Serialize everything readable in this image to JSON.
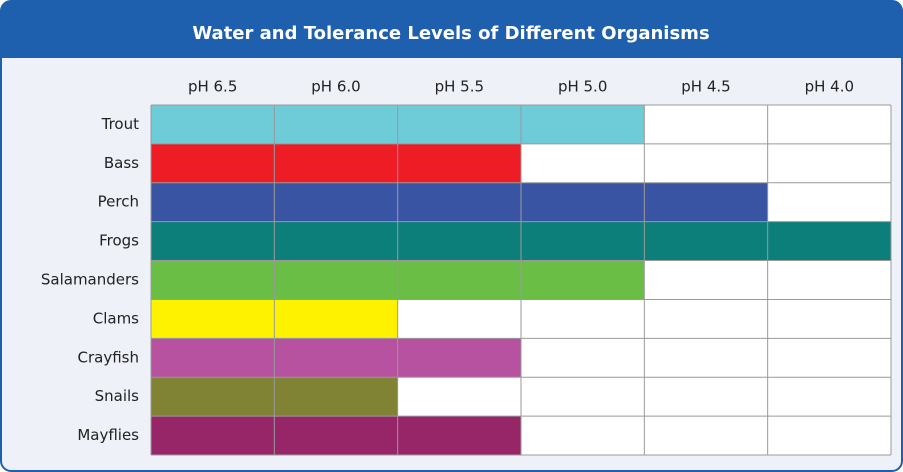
{
  "header": {
    "title": "Water and Tolerance Levels of Different Organisms"
  },
  "table": {
    "columns": [
      "pH 6.5",
      "pH 6.0",
      "pH 5.5",
      "pH 5.0",
      "pH 4.5",
      "pH 4.0"
    ],
    "rows": [
      {
        "label": "Trout",
        "color": "#6ecbd8",
        "cells": [
          true,
          true,
          true,
          true,
          false,
          false
        ]
      },
      {
        "label": "Bass",
        "color": "#ee1c25",
        "cells": [
          true,
          true,
          true,
          false,
          false,
          false
        ]
      },
      {
        "label": "Perch",
        "color": "#3a54a4",
        "cells": [
          true,
          true,
          true,
          true,
          true,
          false
        ]
      },
      {
        "label": "Frogs",
        "color": "#0d7f7a",
        "cells": [
          true,
          true,
          true,
          true,
          true,
          true
        ]
      },
      {
        "label": "Salamanders",
        "color": "#6abd45",
        "cells": [
          true,
          true,
          true,
          true,
          false,
          false
        ]
      },
      {
        "label": "Clams",
        "color": "#fff200",
        "cells": [
          true,
          true,
          false,
          false,
          false,
          false
        ]
      },
      {
        "label": "Crayfish",
        "color": "#b652a0",
        "cells": [
          true,
          true,
          true,
          false,
          false,
          false
        ]
      },
      {
        "label": "Snails",
        "color": "#808234",
        "cells": [
          true,
          true,
          false,
          false,
          false,
          false
        ]
      },
      {
        "label": "Mayflies",
        "color": "#962668",
        "cells": [
          true,
          true,
          true,
          false,
          false,
          false
        ]
      }
    ]
  }
}
